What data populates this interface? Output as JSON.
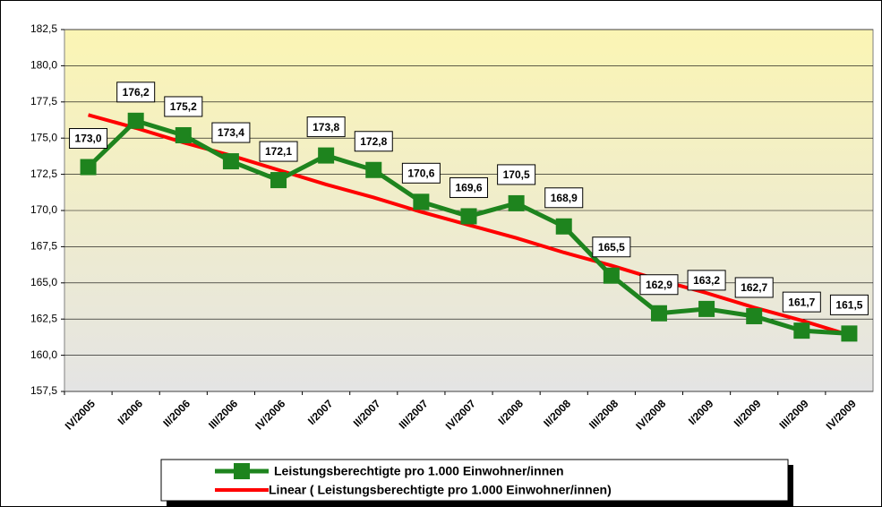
{
  "chart_data": {
    "type": "line",
    "categories": [
      "IV/2005",
      "I/2006",
      "II/2006",
      "III/2006",
      "IV/2006",
      "I/2007",
      "II/2007",
      "III/2007",
      "IV/2007",
      "I/2008",
      "II/2008",
      "III/2008",
      "IV/2008",
      "I/2009",
      "II/2009",
      "III/2009",
      "IV/2009"
    ],
    "series": [
      {
        "name": "Leistungsberechtigte pro 1.000 Einwohner/innen",
        "color": "#1e841e",
        "values": [
          173.0,
          176.2,
          175.2,
          173.4,
          172.1,
          173.8,
          172.8,
          170.6,
          169.6,
          170.5,
          168.9,
          165.5,
          162.9,
          163.2,
          162.7,
          161.7,
          161.5
        ],
        "value_labels": [
          "173,0",
          "176,2",
          "175,2",
          "173,4",
          "172,1",
          "173,8",
          "172,8",
          "170,6",
          "169,6",
          "170,5",
          "168,9",
          "165,5",
          "162,9",
          "163,2",
          "162,7",
          "161,7",
          "161,5"
        ]
      },
      {
        "name": "Linear ( Leistungsberechtigte pro 1.000 Einwohner/innen)",
        "color": "#ff0000",
        "values": [
          176.6,
          175.7,
          174.7,
          173.8,
          172.8,
          171.8,
          170.9,
          169.9,
          169.0,
          168.1,
          167.1,
          166.2,
          165.2,
          164.3,
          163.3,
          162.4,
          161.4
        ]
      }
    ],
    "ylim": [
      157.5,
      182.5
    ],
    "yticks": [
      {
        "value": 157.5,
        "label": "157,5"
      },
      {
        "value": 160,
        "label": "160,0"
      },
      {
        "value": 162.5,
        "label": "162,5"
      },
      {
        "value": 165,
        "label": "165,0"
      },
      {
        "value": 167.5,
        "label": "167,5"
      },
      {
        "value": 170,
        "label": "170,0"
      },
      {
        "value": 172.5,
        "label": "172,5"
      },
      {
        "value": 175,
        "label": "175,0"
      },
      {
        "value": 177.5,
        "label": "177,5"
      },
      {
        "value": 180,
        "label": "180,0"
      },
      {
        "value": 182.5,
        "label": "182,5"
      }
    ],
    "grid": true
  }
}
